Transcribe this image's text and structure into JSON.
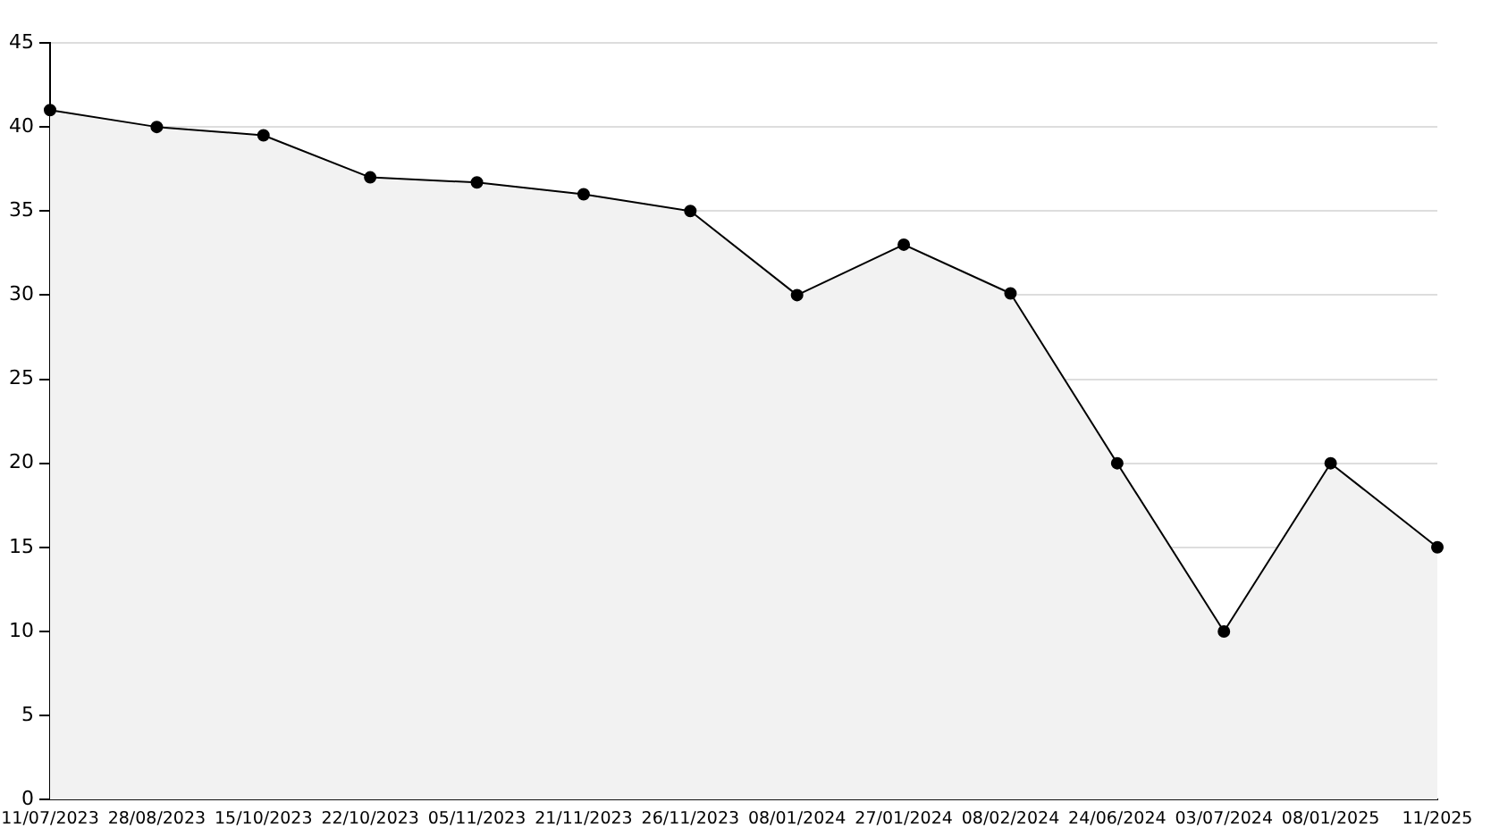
{
  "chart_data": {
    "type": "area",
    "categories": [
      "11/07/2023",
      "28/08/2023",
      "15/10/2023",
      "22/10/2023",
      "05/11/2023",
      "21/11/2023",
      "26/11/2023",
      "08/01/2024",
      "27/01/2024",
      "08/02/2024",
      "24/06/2024",
      "03/07/2024",
      "08/01/2025",
      "11/2025"
    ],
    "series": [
      {
        "color": "#000000",
        "values": [
          41,
          40,
          39.5,
          37,
          36.7,
          36,
          35,
          30,
          33,
          30.1,
          20,
          10,
          20,
          15
        ]
      }
    ],
    "ylim": [
      0,
      45
    ],
    "yticks": [
      0,
      5,
      10,
      15,
      20,
      25,
      30,
      35,
      40,
      45
    ],
    "grid": "y",
    "legend": false,
    "marker": "circle",
    "line_style": "solid"
  }
}
